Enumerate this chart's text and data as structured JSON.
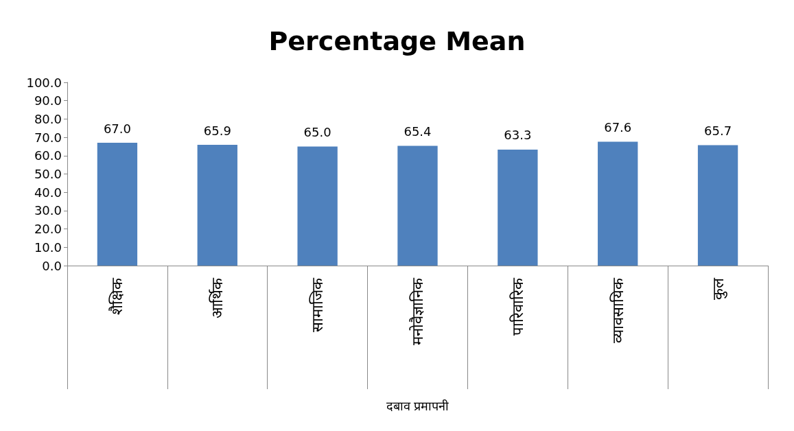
{
  "chart_data": {
    "type": "bar",
    "title": "Percentage Mean",
    "xlabel": "दबाव प्रमापनी",
    "categories": [
      "शैक्षिक",
      "आर्थिक",
      "सामाजिक",
      "मनोवैज्ञानिक",
      "पारिवारिक",
      "व्यावसायिक",
      "कुल"
    ],
    "values": [
      67.0,
      65.9,
      65.0,
      65.4,
      63.3,
      67.6,
      65.7
    ],
    "value_labels": [
      "67.0",
      "65.9",
      "65.0",
      "65.4",
      "63.3",
      "67.6",
      "65.7"
    ],
    "color": "#4f81bd",
    "ylim": [
      0,
      100
    ],
    "yticks": [
      {
        "value": 0,
        "label": "0.0"
      },
      {
        "value": 10,
        "label": "10.0"
      },
      {
        "value": 20,
        "label": "20.0"
      },
      {
        "value": 30,
        "label": "30.0"
      },
      {
        "value": 40,
        "label": "40.0"
      },
      {
        "value": 50,
        "label": "50.0"
      },
      {
        "value": 60,
        "label": "60.0"
      },
      {
        "value": 70,
        "label": "70.0"
      },
      {
        "value": 80,
        "label": "80.0"
      },
      {
        "value": 90,
        "label": "90.0"
      },
      {
        "value": 100,
        "label": "100.0"
      }
    ],
    "grid": false
  }
}
